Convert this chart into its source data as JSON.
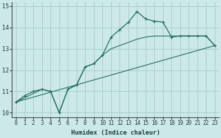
{
  "xlabel": "Humidex (Indice chaleur)",
  "background_color": "#cce8e8",
  "grid_color": "#aacece",
  "line_color": "#1e6b5e",
  "xlim": [
    -0.5,
    23.5
  ],
  "ylim": [
    9.8,
    15.2
  ],
  "yticks": [
    10,
    11,
    12,
    13,
    14,
    15
  ],
  "xticks": [
    0,
    1,
    2,
    3,
    4,
    5,
    6,
    7,
    8,
    9,
    10,
    11,
    12,
    13,
    14,
    15,
    16,
    17,
    18,
    19,
    20,
    21,
    22,
    23
  ],
  "line1_x": [
    0,
    1,
    2,
    3,
    4,
    5,
    6,
    7,
    8,
    9,
    10,
    11,
    12,
    13,
    14,
    15,
    16,
    17,
    18,
    19,
    20,
    21,
    22,
    23
  ],
  "line1_y": [
    10.5,
    10.8,
    11.0,
    11.1,
    11.0,
    10.0,
    11.1,
    11.3,
    12.15,
    12.3,
    12.7,
    13.55,
    13.9,
    14.25,
    14.75,
    14.4,
    14.3,
    14.25,
    13.55,
    13.6,
    13.6,
    13.6,
    13.6,
    13.15
  ],
  "line2_x": [
    0,
    23
  ],
  "line2_y": [
    10.5,
    13.15
  ],
  "line3_x": [
    0,
    3,
    4,
    5,
    6,
    7,
    8,
    9,
    10,
    11,
    12,
    13,
    14,
    15,
    16,
    17,
    18,
    19,
    20,
    21,
    22,
    23
  ],
  "line3_y": [
    10.5,
    11.1,
    11.0,
    10.0,
    11.1,
    11.3,
    12.15,
    12.3,
    12.7,
    13.0,
    13.15,
    13.3,
    13.45,
    13.55,
    13.6,
    13.6,
    13.6,
    13.6,
    13.6,
    13.6,
    13.6,
    13.15
  ]
}
